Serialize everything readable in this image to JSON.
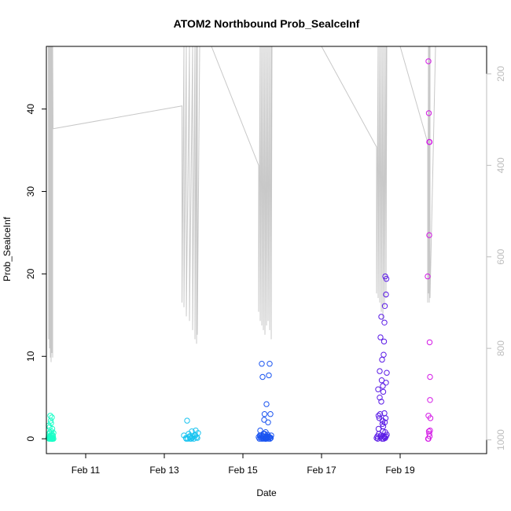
{
  "chart_data": {
    "type": "scatter",
    "title": "ATOM2 Northbound Prob_SealceInf",
    "xlabel": "Date",
    "ylabel": "Prob_SealceInf",
    "xlim": [
      10.0,
      21.2
    ],
    "ylim": [
      -1.8,
      47.6
    ],
    "x_ticks": [
      {
        "value": 11,
        "label": "Feb 11"
      },
      {
        "value": 13,
        "label": "Feb 13"
      },
      {
        "value": 15,
        "label": "Feb 15"
      },
      {
        "value": 17,
        "label": "Feb 17"
      },
      {
        "value": 19,
        "label": "Feb 19"
      }
    ],
    "y_ticks": [
      0,
      10,
      20,
      30,
      40
    ],
    "y2_ticks": [
      200,
      400,
      600,
      800,
      1000
    ],
    "y2lim": [
      1030,
      140
    ],
    "y2_reversed": true,
    "grid": false,
    "legend": "none",
    "depth_line_color": "#c8c8c8",
    "series": [
      {
        "color": "#1affc8",
        "x": [
          10.05,
          10.06,
          10.07,
          10.07,
          10.08,
          10.08,
          10.09,
          10.09,
          10.1,
          10.1,
          10.11,
          10.11,
          10.12,
          10.12,
          10.13,
          10.13,
          10.14,
          10.14,
          10.15,
          10.15,
          10.16,
          10.16,
          10.17,
          10.18,
          10.18,
          10.06,
          10.09,
          10.12,
          10.15,
          10.11,
          10.08,
          10.14
        ],
        "y": [
          0.1,
          0.3,
          0.0,
          0.6,
          0.2,
          1.4,
          0.0,
          0.8,
          2.8,
          0.1,
          0.4,
          2.2,
          0.0,
          1.9,
          0.3,
          0.9,
          2.6,
          0.0,
          0.5,
          1.2,
          0.1,
          0.0,
          0.3,
          0.0,
          0.7,
          1.6,
          0.2,
          0.4,
          0.0,
          0.1,
          0.2,
          0.0
        ]
      },
      {
        "color": "#1ac4f0",
        "x": [
          13.5,
          13.55,
          13.58,
          13.6,
          13.62,
          13.65,
          13.68,
          13.7,
          13.72,
          13.75,
          13.78,
          13.8,
          13.82,
          13.84,
          13.86,
          13.56,
          13.64,
          13.71,
          13.79,
          13.66
        ],
        "y": [
          0.4,
          0.1,
          2.2,
          0.0,
          0.6,
          0.2,
          0.0,
          0.9,
          0.3,
          0.0,
          0.5,
          1.0,
          0.2,
          0.1,
          0.7,
          0.0,
          0.3,
          0.1,
          0.4,
          0.0
        ]
      },
      {
        "color": "#1a54f0",
        "x": [
          15.4,
          15.42,
          15.44,
          15.46,
          15.48,
          15.5,
          15.5,
          15.52,
          15.54,
          15.55,
          15.56,
          15.58,
          15.6,
          15.6,
          15.62,
          15.64,
          15.65,
          15.66,
          15.68,
          15.68,
          15.7,
          15.72,
          15.47,
          15.53,
          15.57,
          15.59,
          15.63,
          15.45,
          15.51,
          15.61,
          15.67,
          15.69,
          15.43,
          15.55,
          15.71,
          15.49,
          15.58,
          15.64
        ],
        "y": [
          0.2,
          0.0,
          1.0,
          0.4,
          9.1,
          7.5,
          0.1,
          0.6,
          2.3,
          3.0,
          0.0,
          0.8,
          4.2,
          0.1,
          0.3,
          2.0,
          0.0,
          7.7,
          9.1,
          0.2,
          3.0,
          0.4,
          0.0,
          0.3,
          0.1,
          0.0,
          0.5,
          0.2,
          0.0,
          0.1,
          0.2,
          0.0,
          0.4,
          0.6,
          0.1,
          0.3,
          0.0,
          0.2
        ]
      },
      {
        "color": "#5a1ae6",
        "x": [
          18.4,
          18.42,
          18.44,
          18.45,
          18.46,
          18.48,
          18.5,
          18.5,
          18.52,
          18.52,
          18.54,
          18.55,
          18.56,
          18.58,
          18.58,
          18.6,
          18.6,
          18.62,
          18.62,
          18.64,
          18.64,
          18.65,
          18.66,
          18.48,
          18.53,
          18.57,
          18.61,
          18.45,
          18.59,
          18.63,
          18.51,
          18.55,
          18.58,
          18.62,
          18.47,
          18.6,
          18.56,
          18.54,
          18.49,
          18.66,
          18.61,
          18.43,
          18.57,
          18.64
        ],
        "y": [
          0.1,
          0.3,
          6.0,
          2.8,
          0.6,
          8.2,
          12.3,
          0.2,
          14.8,
          4.5,
          9.6,
          2.2,
          6.4,
          10.2,
          0.0,
          14.1,
          3.1,
          19.7,
          0.8,
          17.5,
          6.8,
          19.4,
          8.0,
          5.0,
          7.1,
          5.7,
          16.1,
          1.2,
          11.8,
          2.5,
          0.4,
          1.8,
          0.3,
          0.1,
          2.5,
          0.2,
          0.9,
          0.0,
          3.0,
          0.5,
          2.0,
          0.0,
          1.5,
          0.3
        ]
      },
      {
        "color": "#d41ae6",
        "x": [
          19.7,
          19.72,
          19.73,
          19.74,
          19.74,
          19.75,
          19.75,
          19.76,
          19.76,
          19.77,
          19.72,
          19.71,
          19.73,
          19.75,
          19.74,
          19.76,
          19.72
        ],
        "y": [
          19.7,
          45.8,
          39.5,
          36.0,
          24.7,
          36.0,
          11.7,
          7.5,
          4.7,
          2.5,
          2.8,
          0.0,
          0.9,
          0.3,
          0.6,
          1.0,
          0.0
        ]
      }
    ],
    "depth_track": {
      "x": [
        10.05,
        10.06,
        10.06,
        10.08,
        10.08,
        10.1,
        10.1,
        10.12,
        10.12,
        10.14,
        10.14,
        10.16,
        10.16,
        10.17,
        10.17,
        13.45,
        13.45,
        13.5,
        13.5,
        13.56,
        13.56,
        13.64,
        13.64,
        13.72,
        13.72,
        13.78,
        13.78,
        13.82,
        13.82,
        13.84,
        13.84,
        13.9,
        14.2,
        15.4,
        15.4,
        15.44,
        15.44,
        15.48,
        15.48,
        15.52,
        15.52,
        15.56,
        15.56,
        15.6,
        15.6,
        15.64,
        15.64,
        15.68,
        15.68,
        15.72,
        15.72,
        15.74,
        17.0,
        18.4,
        18.4,
        18.44,
        18.44,
        18.48,
        18.48,
        18.52,
        18.52,
        18.56,
        18.56,
        18.6,
        18.6,
        18.64,
        18.64,
        18.66,
        19.0,
        19.7,
        19.7,
        19.72,
        19.72,
        19.74,
        19.74,
        19.76,
        19.76,
        19.9
      ],
      "depth": [
        140,
        780,
        140,
        800,
        140,
        820,
        140,
        830,
        140,
        810,
        140,
        820,
        140,
        320,
        320,
        270,
        700,
        140,
        710,
        140,
        730,
        140,
        740,
        140,
        760,
        140,
        780,
        140,
        790,
        140,
        770,
        140,
        140,
        400,
        720,
        140,
        740,
        140,
        750,
        140,
        760,
        140,
        770,
        140,
        750,
        140,
        740,
        140,
        760,
        140,
        780,
        140,
        140,
        360,
        680,
        140,
        690,
        140,
        700,
        140,
        720,
        140,
        740,
        140,
        710,
        140,
        690,
        140,
        140,
        350,
        700,
        140,
        680,
        140,
        700,
        140,
        690,
        140
      ]
    }
  }
}
